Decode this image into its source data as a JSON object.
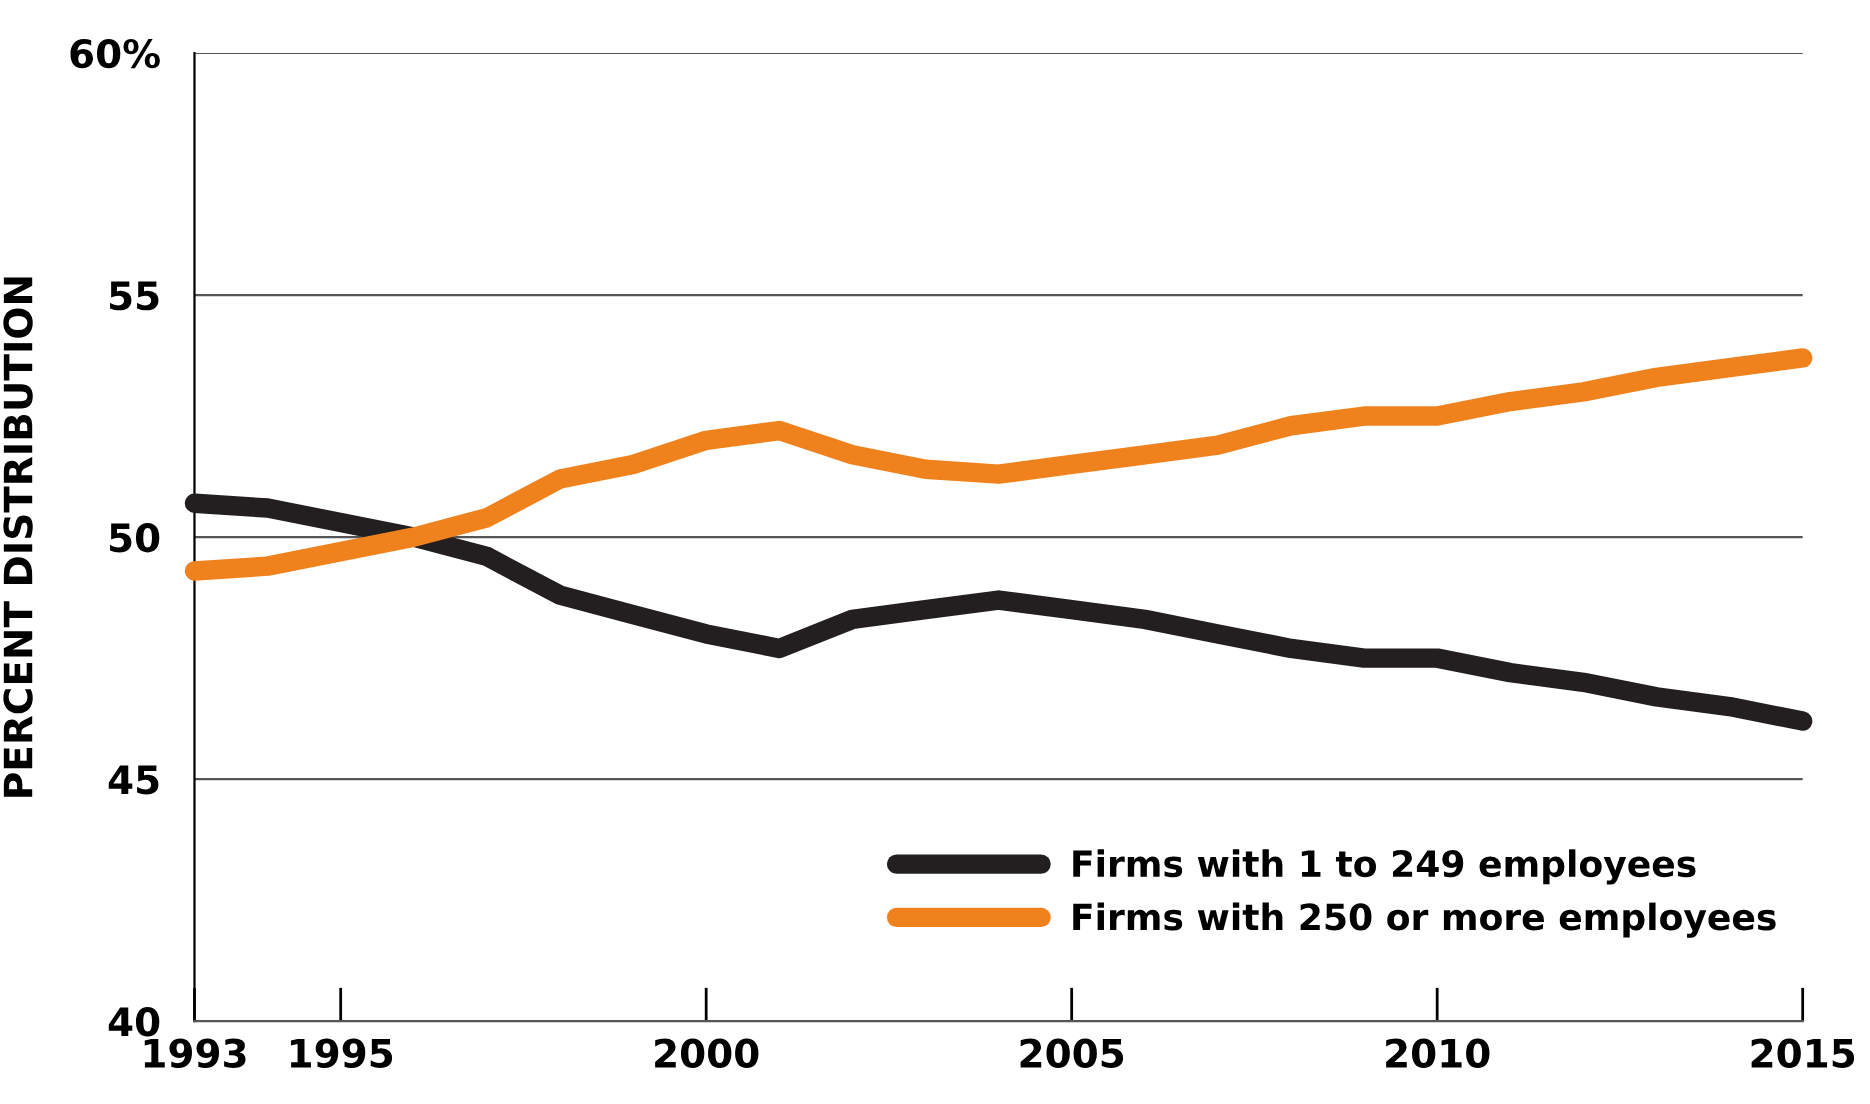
{
  "chart_data": {
    "type": "line",
    "ylabel": "PERCENT DISTRIBUTION",
    "x": [
      1993,
      1994,
      1995,
      1996,
      1997,
      1998,
      1999,
      2000,
      2001,
      2002,
      2003,
      2004,
      2005,
      2006,
      2007,
      2008,
      2009,
      2010,
      2011,
      2012,
      2013,
      2014,
      2015
    ],
    "series": [
      {
        "name": "Firms with 1 to 249 employees",
        "color": "#231f20",
        "values": [
          50.7,
          50.6,
          50.3,
          50.0,
          49.6,
          48.8,
          48.4,
          48.0,
          47.7,
          48.3,
          48.5,
          48.7,
          48.5,
          48.3,
          48.0,
          47.7,
          47.5,
          47.5,
          47.2,
          47.0,
          46.7,
          46.5,
          46.2
        ]
      },
      {
        "name": "Firms with 250 or more employees",
        "color": "#f0821e",
        "values": [
          49.3,
          49.4,
          49.7,
          50.0,
          50.4,
          51.2,
          51.5,
          52.0,
          52.2,
          51.7,
          51.4,
          51.3,
          51.5,
          51.7,
          51.9,
          52.3,
          52.5,
          52.5,
          52.8,
          53.0,
          53.3,
          53.5,
          53.7
        ]
      }
    ],
    "xlim": [
      1993,
      2015
    ],
    "xticks": [
      1993,
      1995,
      2000,
      2005,
      2010,
      2015
    ],
    "ylim": [
      40,
      60
    ],
    "yticks": [
      40,
      45,
      50,
      55,
      {
        "value": 60,
        "label": "60%"
      }
    ],
    "grid": "y",
    "legend": "bottom right",
    "marker": "none",
    "line_style": "solid"
  }
}
